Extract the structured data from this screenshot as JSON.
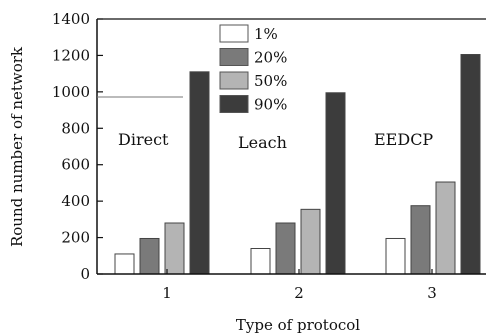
{
  "chart_data": {
    "type": "bar",
    "categories": [
      "1",
      "2",
      "3"
    ],
    "series": [
      {
        "name": "1%",
        "color": "#ffffff",
        "values": [
          110,
          140,
          195
        ]
      },
      {
        "name": "20%",
        "color": "#7a7a7a",
        "values": [
          195,
          280,
          375
        ]
      },
      {
        "name": "50%",
        "color": "#b4b4b4",
        "values": [
          280,
          355,
          505
        ]
      },
      {
        "name": "90%",
        "color": "#3c3c3c",
        "values": [
          1110,
          995,
          1205
        ]
      }
    ],
    "xlabel": "Type of protocol",
    "ylabel": "Round number of network",
    "ylim": [
      0,
      1400
    ],
    "yticks": [
      "0",
      "200",
      "400",
      "600",
      "800",
      "1000",
      "1200",
      "1400"
    ],
    "annotations": [
      "Direct",
      "Leach",
      "EEDCP"
    ],
    "legend_position": "top-center",
    "grid": false
  }
}
